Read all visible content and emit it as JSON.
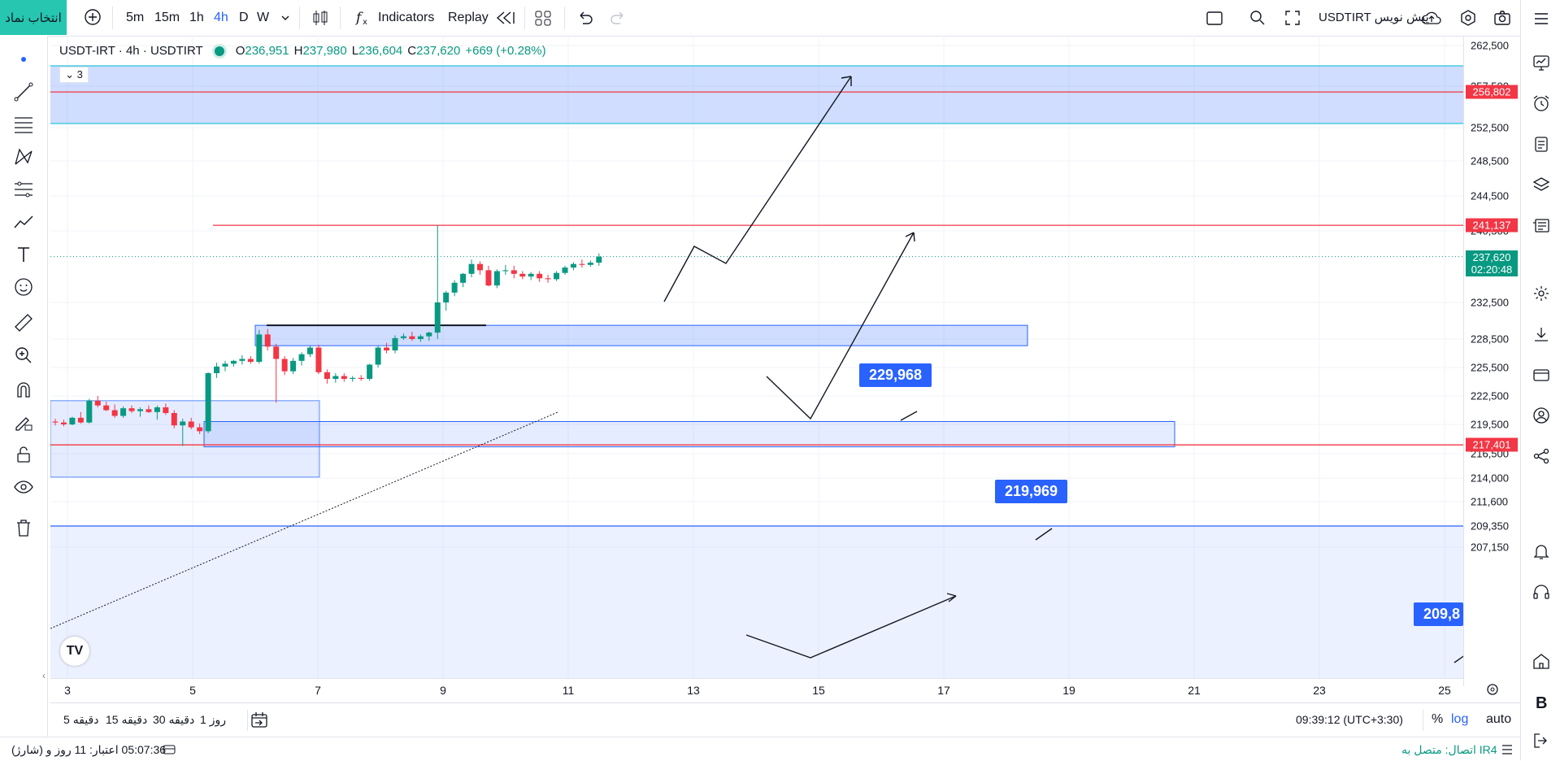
{
  "toolbar": {
    "symbol_button": "انتخاب نماد",
    "intervals": [
      "5m",
      "15m",
      "1h",
      "4h",
      "D",
      "W"
    ],
    "active_interval": "4h",
    "indicators_label": "Indicators",
    "replay_label": "Replay",
    "publish_label": "USDTIRT پیش نویس"
  },
  "legend": {
    "title": "USDT-IRT · 4h · USDTIRT",
    "open_label": "O",
    "open": "236,951",
    "high_label": "H",
    "high": "237,980",
    "low_label": "L",
    "low": "236,604",
    "close_label": "C",
    "close": "237,620",
    "change": "+669 (+0.28%)",
    "collapsed_count": "3"
  },
  "price_axis": {
    "ticks": [
      "262,500",
      "257,500",
      "252,500",
      "248,500",
      "244,500",
      "240,500",
      "232,500",
      "228,500",
      "225,500",
      "222,500",
      "219,500",
      "216,500",
      "214,000",
      "211,600",
      "209,350",
      "207,150"
    ],
    "badges": [
      {
        "value": "256,802",
        "color": "#f23645"
      },
      {
        "value": "241,137",
        "color": "#f23645"
      },
      {
        "value": "237,620",
        "sub": "02:20:48",
        "color": "#089981"
      },
      {
        "value": "217,401",
        "color": "#f23645"
      }
    ]
  },
  "time_axis": {
    "ticks": [
      "3",
      "5",
      "7",
      "9",
      "11",
      "13",
      "15",
      "17",
      "19",
      "21",
      "23",
      "25"
    ]
  },
  "annotations": {
    "label_1": "229,968",
    "label_2": "219,969",
    "label_3": "209,8"
  },
  "bottom_bar": {
    "ranges": [
      "5 دقیقه",
      "15 دقیقه",
      "30 دقیقه",
      "1 روز"
    ],
    "clock": "09:39:12 (UTC+3:30)",
    "percent": "%",
    "log": "log",
    "auto": "auto"
  },
  "status_bar": {
    "credit": "(شارژ) 05:07:36 اعتبار: 11 روز و",
    "connection": "اتصال: متصل به IR4"
  },
  "chart_data": {
    "type": "candlestick",
    "symbol": "USDT-IRT",
    "interval": "4h",
    "ohlc_last": {
      "open": 236951,
      "high": 237980,
      "low": 236604,
      "close": 237620
    },
    "horizontal_lines": [
      256802,
      241137,
      217401,
      209350
    ],
    "zones": [
      [
        253000,
        260000
      ],
      [
        228000,
        230500
      ],
      [
        217400,
        219800
      ],
      [
        207000,
        209350
      ]
    ],
    "candles": [
      [
        219800,
        220100,
        219400,
        219700
      ],
      [
        219700,
        220000,
        219300,
        219500
      ],
      [
        219500,
        220300,
        219400,
        220200
      ],
      [
        220200,
        220800,
        219600,
        219700
      ],
      [
        219700,
        222200,
        219600,
        222000
      ],
      [
        222000,
        222500,
        221300,
        221500
      ],
      [
        221500,
        221900,
        220900,
        221000
      ],
      [
        221000,
        221600,
        220200,
        220400
      ],
      [
        220400,
        221400,
        220200,
        221200
      ],
      [
        221200,
        221500,
        220700,
        220900
      ],
      [
        220900,
        221300,
        220300,
        221100
      ],
      [
        221100,
        221500,
        220700,
        220800
      ],
      [
        220800,
        221500,
        220000,
        221300
      ],
      [
        221300,
        221700,
        220500,
        220700
      ],
      [
        220700,
        221000,
        219100,
        219400
      ],
      [
        219400,
        220100,
        217300,
        219800
      ],
      [
        219800,
        220200,
        219000,
        219200
      ],
      [
        219200,
        219600,
        218500,
        218800
      ],
      [
        218800,
        225000,
        218600,
        224900
      ],
      [
        224900,
        226000,
        224400,
        225600
      ],
      [
        225600,
        226200,
        225100,
        225900
      ],
      [
        225900,
        226300,
        225600,
        226200
      ],
      [
        226200,
        226800,
        225800,
        226400
      ],
      [
        226400,
        226700,
        225900,
        226100
      ],
      [
        226100,
        229500,
        225900,
        229000
      ],
      [
        229000,
        229600,
        227300,
        227700
      ],
      [
        227700,
        228000,
        221800,
        226400
      ],
      [
        226400,
        226700,
        224700,
        225100
      ],
      [
        225100,
        226500,
        224800,
        226200
      ],
      [
        226200,
        227100,
        225700,
        226900
      ],
      [
        226900,
        227800,
        226600,
        227600
      ],
      [
        227600,
        227900,
        224800,
        225000
      ],
      [
        225000,
        225300,
        223800,
        224300
      ],
      [
        224300,
        224900,
        223900,
        224600
      ],
      [
        224600,
        224900,
        224000,
        224300
      ],
      [
        224300,
        224600,
        224000,
        224400
      ],
      [
        224400,
        224700,
        224100,
        224300
      ],
      [
        224300,
        225900,
        224100,
        225800
      ],
      [
        225800,
        227800,
        225500,
        227600
      ],
      [
        227600,
        228100,
        227000,
        227300
      ],
      [
        227300,
        228900,
        227000,
        228600
      ],
      [
        228600,
        229100,
        228400,
        228800
      ],
      [
        228800,
        229300,
        228300,
        228500
      ],
      [
        228500,
        229000,
        228200,
        228800
      ],
      [
        228800,
        229300,
        228300,
        229200
      ],
      [
        229200,
        241137,
        228500,
        232500
      ],
      [
        232500,
        233800,
        231600,
        233600
      ],
      [
        233600,
        235000,
        233200,
        234700
      ],
      [
        234700,
        235800,
        234200,
        235700
      ],
      [
        235700,
        237300,
        235300,
        236800
      ],
      [
        236800,
        237100,
        235600,
        236100
      ],
      [
        236100,
        236600,
        234300,
        234400
      ],
      [
        234400,
        236200,
        234100,
        236000
      ],
      [
        236000,
        236700,
        235600,
        236100
      ],
      [
        236100,
        236600,
        235200,
        235700
      ],
      [
        235700,
        236000,
        235100,
        235400
      ],
      [
        235400,
        235900,
        235000,
        235700
      ],
      [
        235700,
        236000,
        234800,
        235200
      ],
      [
        235200,
        235600,
        234700,
        235100
      ],
      [
        235100,
        236000,
        234900,
        235800
      ],
      [
        235800,
        236600,
        235600,
        236400
      ],
      [
        236400,
        237000,
        236100,
        236800
      ],
      [
        236800,
        237300,
        236400,
        236700
      ],
      [
        236700,
        237200,
        236500,
        236951
      ],
      [
        236951,
        237980,
        236604,
        237620
      ]
    ]
  }
}
